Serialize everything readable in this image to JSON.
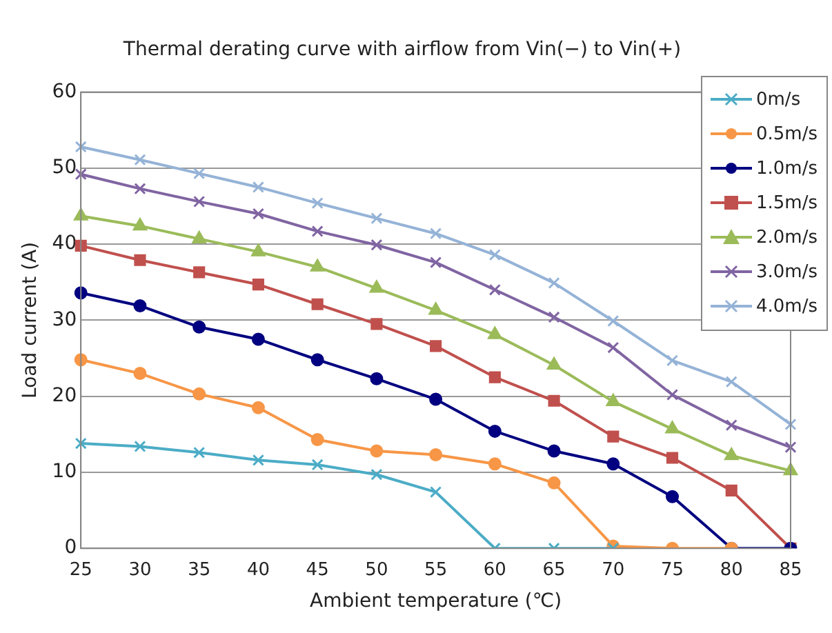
{
  "chart_data": {
    "type": "line",
    "title": "Thermal derating curve with airflow from Vin(−) to Vin(+)",
    "xlabel": "Ambient temperature (℃)",
    "ylabel": "Load current (A)",
    "categories": [
      "25",
      "30",
      "35",
      "40",
      "45",
      "50",
      "55",
      "60",
      "65",
      "70",
      "75",
      "80",
      "85"
    ],
    "ylim": [
      0,
      60
    ],
    "yticks": [
      0,
      10,
      20,
      30,
      40,
      50,
      60
    ],
    "grid": "y",
    "legend": "top right",
    "line_style": "solid",
    "series": [
      {
        "name": "0m/s",
        "color": "#4bacc6",
        "marker": "cross",
        "values": [
          13.8,
          13.4,
          12.6,
          11.6,
          11,
          9.7,
          7.4,
          0,
          0,
          0,
          null,
          null,
          null
        ]
      },
      {
        "name": "0.5m/s",
        "color": "#f79646",
        "marker": "circle",
        "values": [
          24.8,
          23,
          20.3,
          18.5,
          14.3,
          12.8,
          12.3,
          11.1,
          8.6,
          0.3,
          0,
          0,
          null
        ]
      },
      {
        "name": "1.0m/s",
        "color": "#000080",
        "marker": "circle",
        "values": [
          33.6,
          31.9,
          29.1,
          27.5,
          24.8,
          22.3,
          19.6,
          15.4,
          12.8,
          11.1,
          6.8,
          0,
          0
        ]
      },
      {
        "name": "1.5m/s",
        "color": "#c0504d",
        "marker": "square",
        "values": [
          39.8,
          37.9,
          36.3,
          34.7,
          32.1,
          29.5,
          26.6,
          22.5,
          19.4,
          14.7,
          11.9,
          7.6,
          0
        ]
      },
      {
        "name": "2.0m/s",
        "color": "#9bbb59",
        "marker": "triangle",
        "values": [
          43.7,
          42.4,
          40.7,
          39,
          37,
          34.2,
          31.3,
          28.1,
          24.1,
          19.3,
          15.7,
          12.2,
          10.2
        ]
      },
      {
        "name": "3.0m/s",
        "color": "#8064a2",
        "marker": "cross",
        "values": [
          49.2,
          47.3,
          45.6,
          44,
          41.7,
          39.9,
          37.6,
          34,
          30.4,
          26.4,
          20.2,
          16.2,
          13.3
        ]
      },
      {
        "name": "4.0m/s",
        "color": "#95b3d7",
        "marker": "cross",
        "values": [
          52.8,
          51.1,
          49.3,
          47.5,
          45.4,
          43.4,
          41.4,
          38.6,
          34.9,
          29.9,
          24.7,
          21.9,
          16.3
        ]
      }
    ]
  }
}
